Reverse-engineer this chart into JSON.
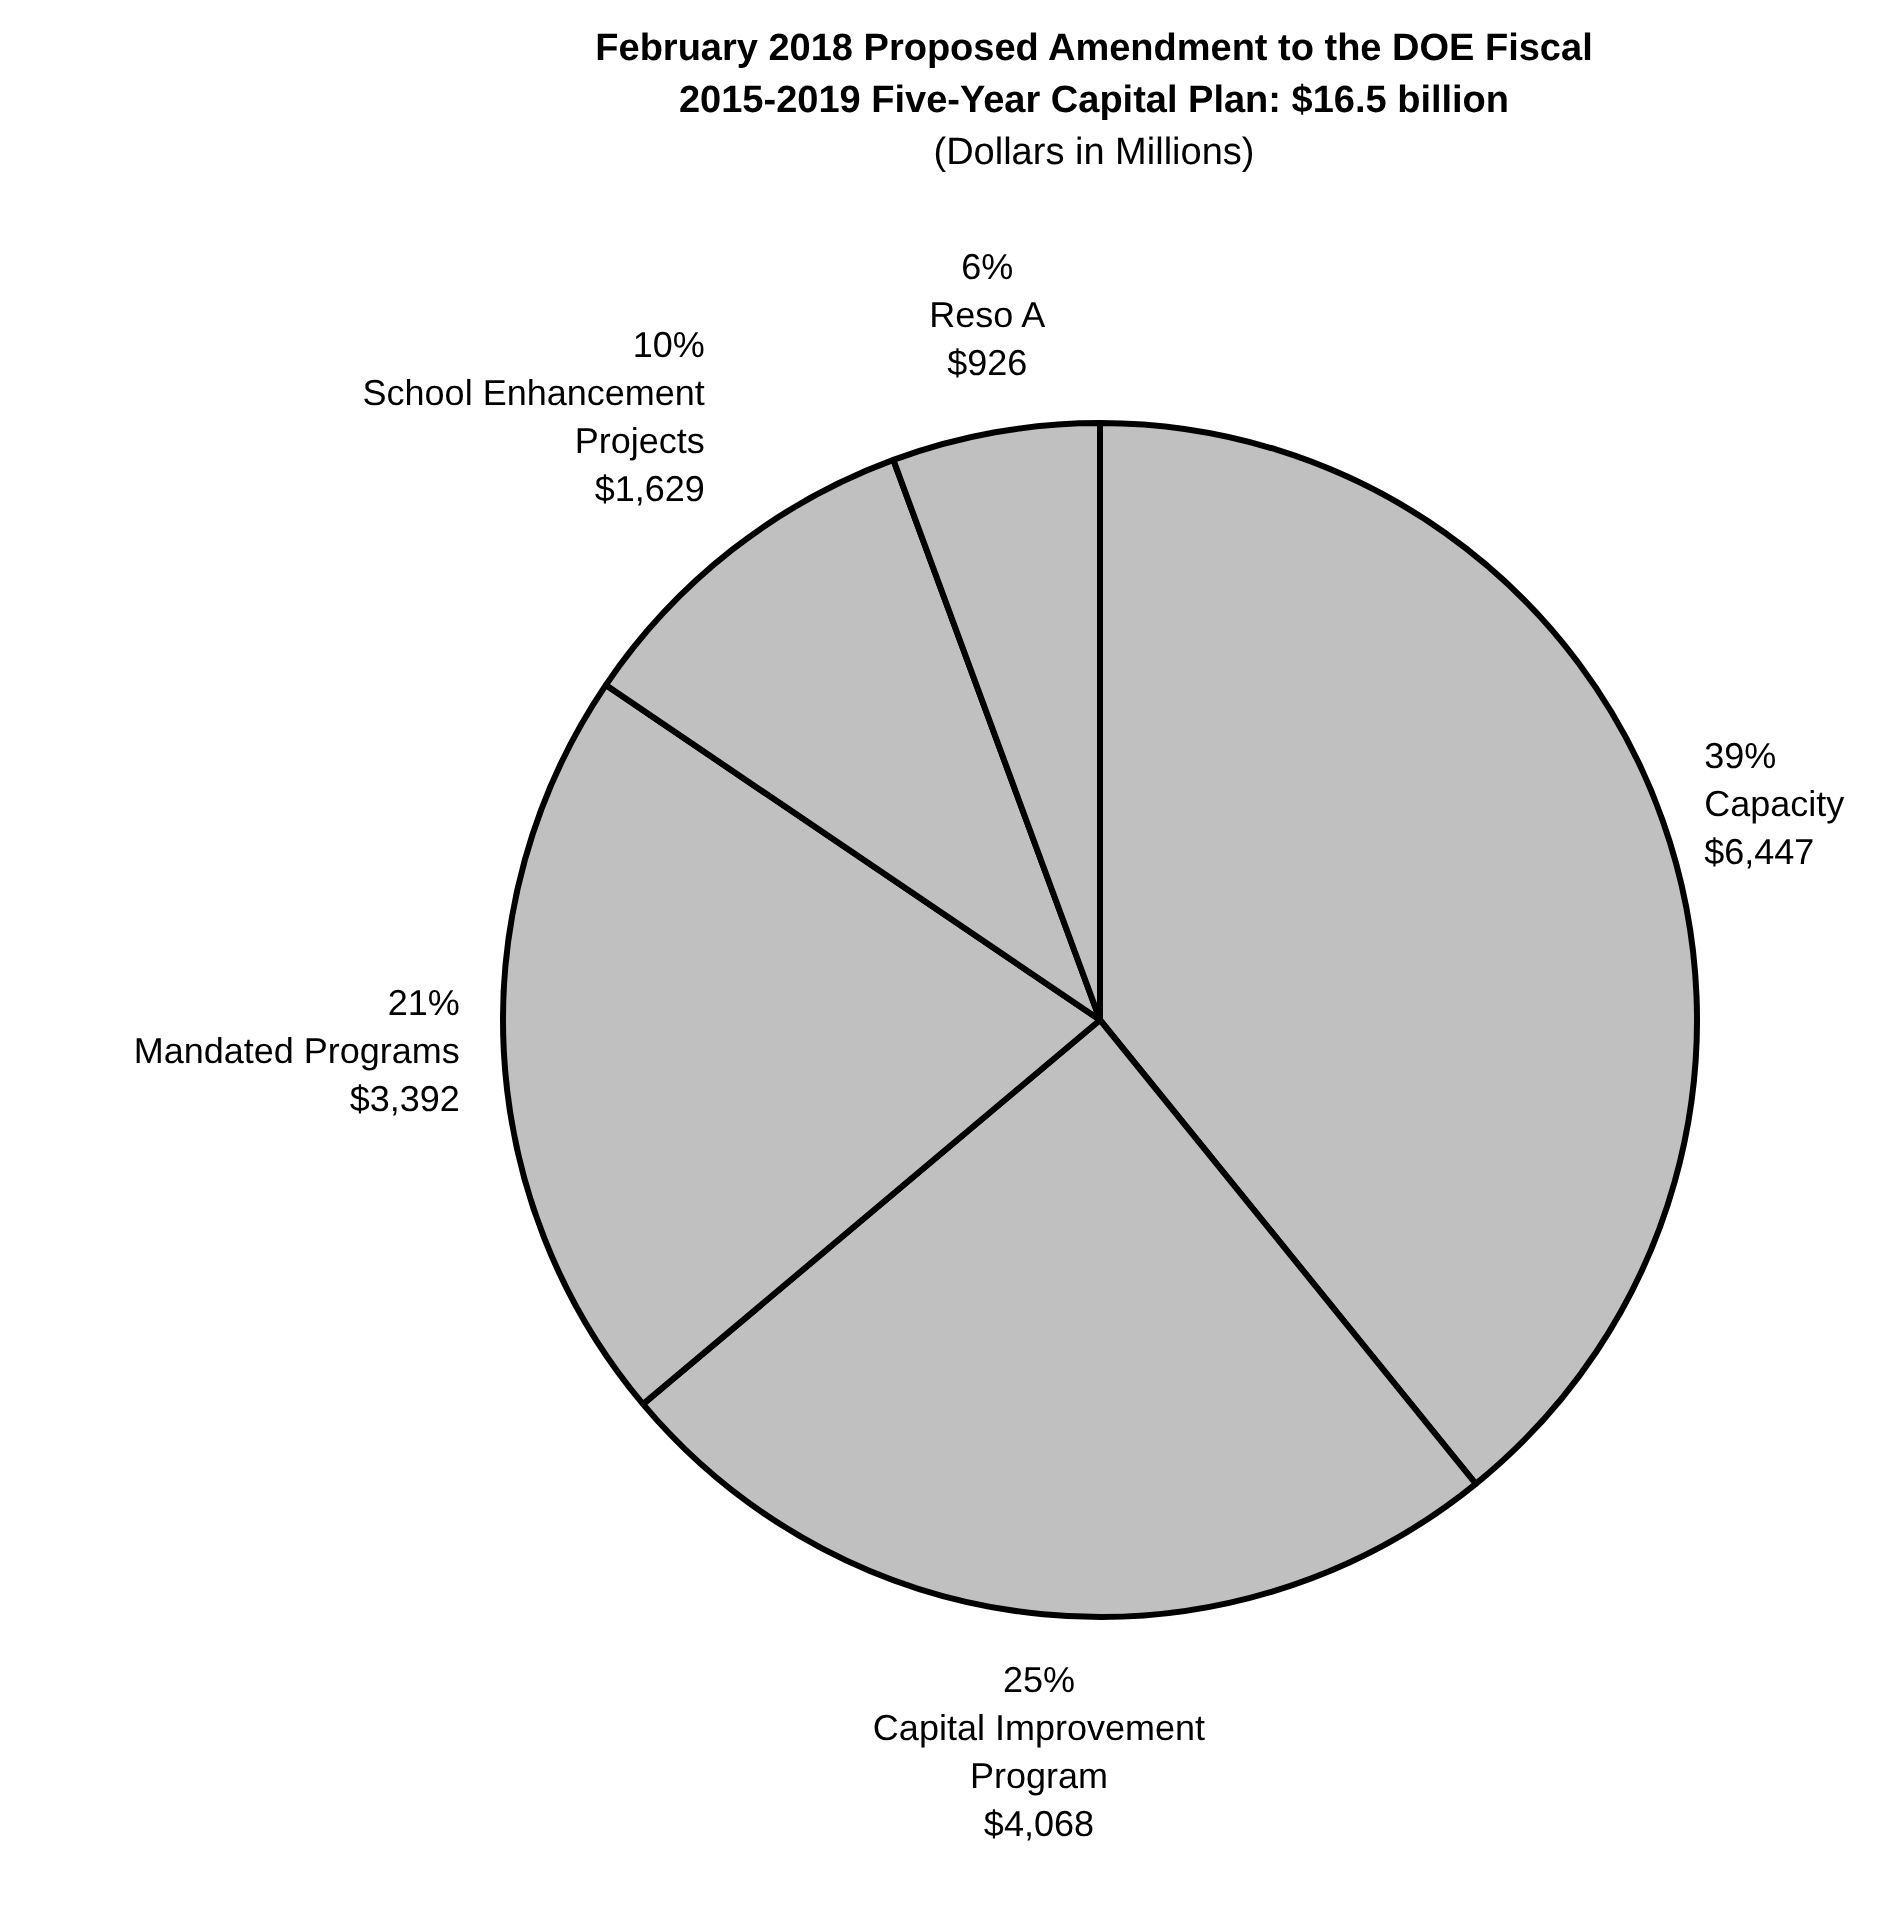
{
  "chart_data": {
    "type": "pie",
    "title": "February 2018 Proposed Amendment to the DOE Fiscal 2015-2019 Five-Year Capital Plan: $16.5 billion",
    "subtitle": "(Dollars in Millions)",
    "categories": [
      "Capacity",
      "Capital Improvement Program",
      "Mandated Programs",
      "School Enhancement Projects",
      "Reso A"
    ],
    "values": [
      6447,
      4068,
      3392,
      1629,
      926
    ],
    "colors": [
      "#c0c0c0",
      "#c0c0c0",
      "#c0c0c0",
      "#c0c0c0",
      "#c0c0c0"
    ],
    "value_labels": [
      "$6,447",
      "$4,068",
      "$3,392",
      "$1,629",
      "$926"
    ],
    "annotations": [
      {
        "text": "39%",
        "x": "Capacity"
      },
      {
        "text": "25%",
        "x": "Capital Improvement Program"
      },
      {
        "text": "21%",
        "x": "Mandated Programs"
      },
      {
        "text": "10%",
        "x": "School Enhancement Projects"
      },
      {
        "text": "6%",
        "x": "Reso A"
      }
    ],
    "legend": false
  }
}
